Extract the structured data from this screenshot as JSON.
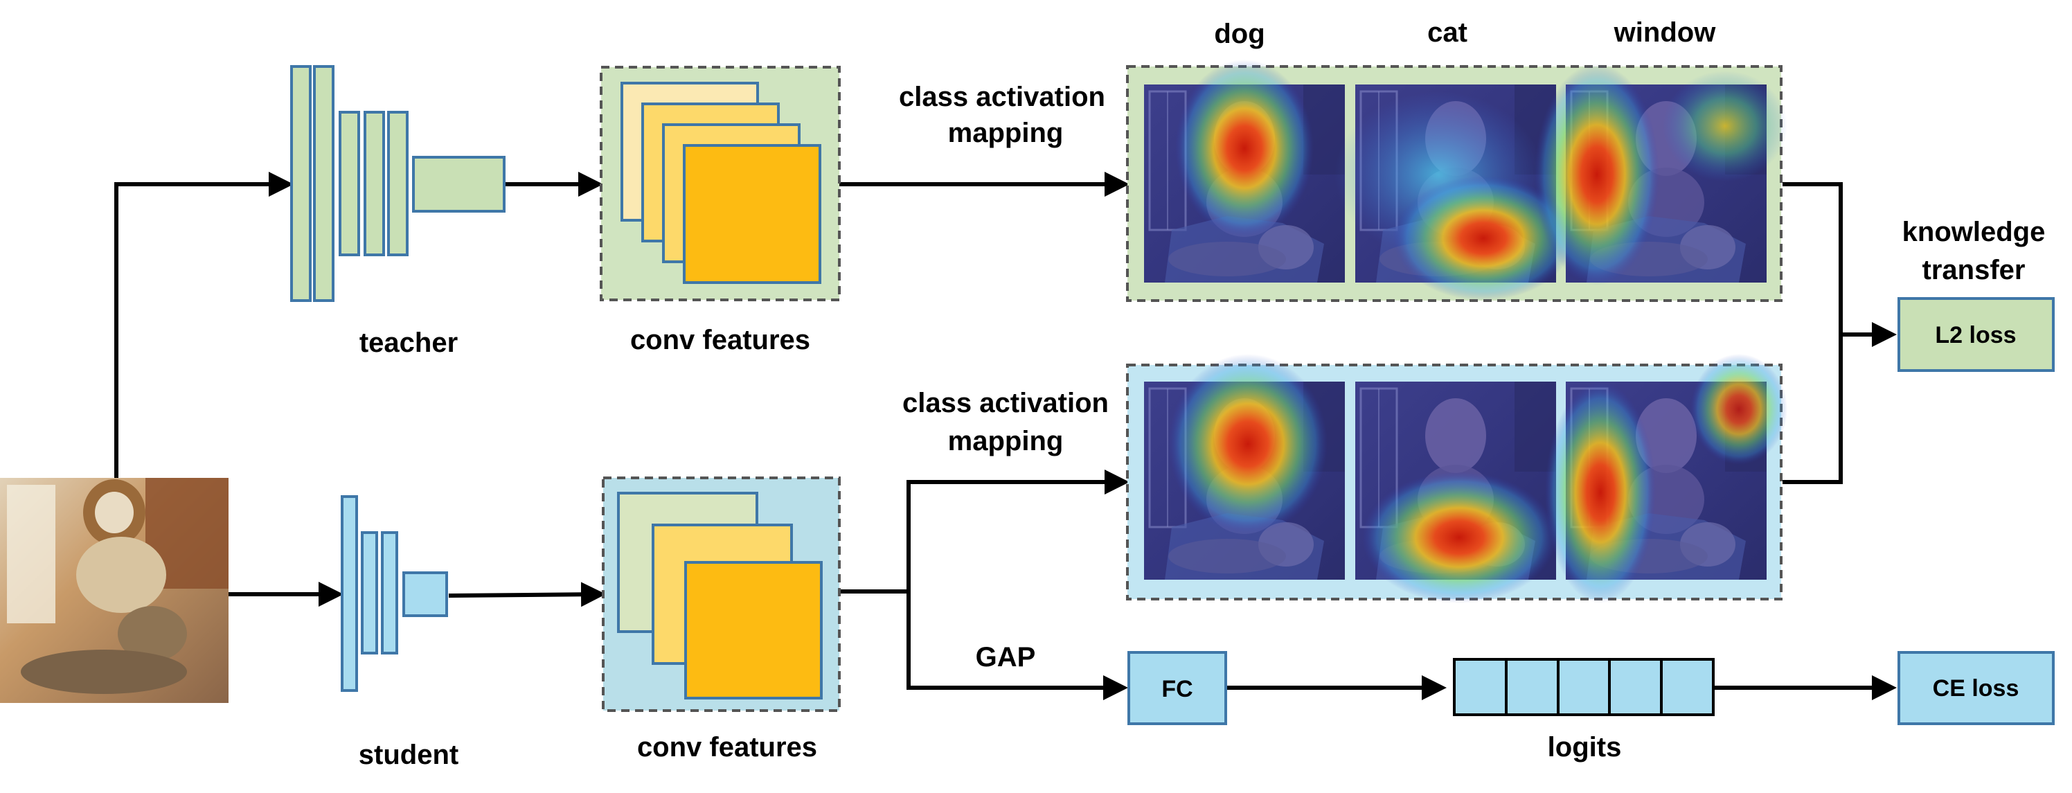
{
  "teacher_label": "teacher",
  "student_label": "student",
  "teacher_features_label": "conv features",
  "student_features_label": "conv features",
  "teacher_cam_label_line1": "class activation",
  "teacher_cam_label_line2": "mapping",
  "student_cam_label_line1": "class activation",
  "student_cam_label_line2": "mapping",
  "cam_classes": [
    "dog",
    "cat",
    "window"
  ],
  "knowledge_transfer_line1": "knowledge",
  "knowledge_transfer_line2": "transfer",
  "l2_loss": "L2 loss",
  "gap_label": "GAP",
  "fc_label": "FC",
  "logits_label": "logits",
  "ce_loss": "CE loss",
  "colors": {
    "teacher_fill": "#c9e0b5",
    "student_fill": "#a8dcf0",
    "layer_stroke": "#3f77a8",
    "feature_front": "#fdbb12",
    "feature_mid": "#fdd96a",
    "feature_back_teacher": "#fbe9b3",
    "feature_back_student": "#d9e6c0",
    "teacher_panel": "#d0e4c0",
    "student_panel": "#c2e6f3"
  }
}
